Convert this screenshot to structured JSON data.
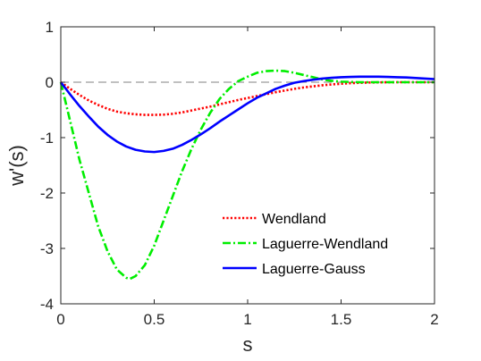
{
  "chart_data": {
    "type": "line",
    "title": "",
    "xlabel": "s",
    "ylabel": "w'(s)",
    "xlim": [
      0,
      2
    ],
    "ylim": [
      -4,
      1
    ],
    "xticks": [
      "0",
      "0.5",
      "1",
      "1.5",
      "2"
    ],
    "yticks": [
      "1",
      "0",
      "-1",
      "-2",
      "-3",
      "-4"
    ],
    "grid": false,
    "legend_position": "lower-right",
    "zero_line": {
      "y": 0,
      "color": "#808080",
      "style": "dashed"
    },
    "series": [
      {
        "name": "Wendland",
        "color": "#ff0000",
        "style": "dotted",
        "x": [
          0,
          0.05,
          0.1,
          0.15,
          0.2,
          0.25,
          0.3,
          0.35,
          0.4,
          0.45,
          0.5,
          0.55,
          0.6,
          0.65,
          0.7,
          0.75,
          0.8,
          0.85,
          0.9,
          0.95,
          1.0,
          1.05,
          1.1,
          1.15,
          1.2,
          1.25,
          1.3,
          1.35,
          1.4,
          1.45,
          1.5,
          1.55,
          1.6,
          1.65,
          1.7,
          1.75,
          1.8,
          1.85,
          1.9,
          1.95,
          2.0
        ],
        "values": [
          0,
          -0.12,
          -0.23,
          -0.33,
          -0.41,
          -0.48,
          -0.53,
          -0.56,
          -0.58,
          -0.59,
          -0.59,
          -0.585,
          -0.57,
          -0.545,
          -0.51,
          -0.475,
          -0.44,
          -0.4,
          -0.36,
          -0.32,
          -0.285,
          -0.25,
          -0.215,
          -0.18,
          -0.15,
          -0.12,
          -0.095,
          -0.075,
          -0.055,
          -0.04,
          -0.028,
          -0.018,
          -0.011,
          -0.006,
          -0.003,
          -0.001,
          0,
          0,
          0,
          0,
          0
        ]
      },
      {
        "name": "Laguerre-Wendland",
        "color": "#00ee00",
        "style": "dashdot",
        "x": [
          0,
          0.05,
          0.1,
          0.15,
          0.2,
          0.25,
          0.3,
          0.35,
          0.37,
          0.4,
          0.45,
          0.5,
          0.55,
          0.6,
          0.65,
          0.7,
          0.75,
          0.8,
          0.85,
          0.9,
          0.95,
          1.0,
          1.05,
          1.1,
          1.15,
          1.2,
          1.25,
          1.3,
          1.35,
          1.4,
          1.45,
          1.5,
          1.55,
          1.6,
          1.7,
          1.8,
          1.9,
          2.0
        ],
        "values": [
          0,
          -0.7,
          -1.4,
          -2.0,
          -2.6,
          -3.05,
          -3.38,
          -3.53,
          -3.55,
          -3.5,
          -3.3,
          -2.95,
          -2.5,
          -2.05,
          -1.6,
          -1.2,
          -0.85,
          -0.55,
          -0.3,
          -0.12,
          0.02,
          0.1,
          0.17,
          0.2,
          0.21,
          0.2,
          0.17,
          0.13,
          0.09,
          0.05,
          0.025,
          0.01,
          0.005,
          0,
          0,
          0,
          0,
          0
        ]
      },
      {
        "name": "Laguerre-Gauss",
        "color": "#0000ff",
        "style": "solid",
        "x": [
          0,
          0.05,
          0.1,
          0.15,
          0.2,
          0.25,
          0.3,
          0.35,
          0.4,
          0.45,
          0.5,
          0.55,
          0.6,
          0.65,
          0.7,
          0.75,
          0.8,
          0.85,
          0.9,
          0.95,
          1.0,
          1.05,
          1.1,
          1.15,
          1.2,
          1.25,
          1.3,
          1.35,
          1.4,
          1.45,
          1.5,
          1.55,
          1.6,
          1.65,
          1.7,
          1.75,
          1.8,
          1.85,
          1.9,
          1.95,
          2.0
        ],
        "values": [
          0,
          -0.22,
          -0.43,
          -0.62,
          -0.8,
          -0.95,
          -1.07,
          -1.16,
          -1.22,
          -1.25,
          -1.26,
          -1.24,
          -1.2,
          -1.13,
          -1.04,
          -0.94,
          -0.83,
          -0.71,
          -0.6,
          -0.49,
          -0.38,
          -0.28,
          -0.2,
          -0.12,
          -0.06,
          -0.01,
          0.02,
          0.045,
          0.065,
          0.08,
          0.09,
          0.095,
          0.1,
          0.1,
          0.1,
          0.095,
          0.09,
          0.085,
          0.075,
          0.065,
          0.055
        ]
      }
    ]
  }
}
